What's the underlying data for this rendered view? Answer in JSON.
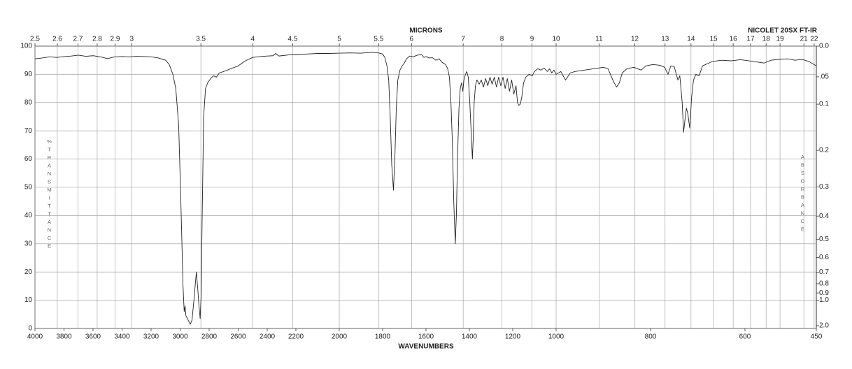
{
  "chart_data": {
    "type": "line",
    "title": "NICOLET 20SX FT-IR",
    "x2label": "MICRONS",
    "xlabel": "WAVENUMBERS",
    "ylabel": "%TRANSMITTANCE",
    "y2label": "ABSORBANCE",
    "color": "#222222",
    "grid": true,
    "xlim": [
      4000,
      450
    ],
    "xticks": [
      4000,
      3800,
      3600,
      3400,
      3200,
      3000,
      2800,
      2600,
      2400,
      2200,
      2000,
      1800,
      1600,
      1400,
      1200,
      1000,
      800,
      600,
      450
    ],
    "x2ticks": [
      2.5,
      2.6,
      2.7,
      2.8,
      2.9,
      3,
      3.5,
      4,
      4.5,
      5,
      5.5,
      6,
      7,
      8,
      9,
      10,
      11,
      12,
      13,
      14,
      15,
      16,
      17,
      18,
      19,
      21,
      22
    ],
    "ylim": [
      0,
      100
    ],
    "yticks": [
      0,
      10,
      20,
      30,
      40,
      50,
      60,
      70,
      80,
      90,
      100
    ],
    "y2lim": [
      0,
      2
    ],
    "y2ticks": [
      {
        "value": 0,
        "label": "0.0"
      },
      {
        "value": 0.05,
        "label": ".05"
      },
      {
        "value": 0.1,
        "label": "0.1"
      },
      {
        "value": 0.2,
        "label": "0.2"
      },
      {
        "value": 0.3,
        "label": "0.3"
      },
      {
        "value": 0.4,
        "label": "0.4"
      },
      {
        "value": 0.5,
        "label": "0.5"
      },
      {
        "value": 0.6,
        "label": "0.6"
      },
      {
        "value": 0.7,
        "label": "0.7"
      },
      {
        "value": 0.8,
        "label": "0.8"
      },
      {
        "value": 0.9,
        "label": "0.9"
      },
      {
        "value": 1,
        "label": "1.0"
      },
      {
        "value": 2,
        "label": "2.0"
      }
    ],
    "x": [
      4000,
      3950,
      3900,
      3850,
      3800,
      3750,
      3700,
      3650,
      3600,
      3550,
      3500,
      3450,
      3400,
      3350,
      3300,
      3250,
      3200,
      3150,
      3100,
      3075,
      3050,
      3030,
      3010,
      2995,
      2980,
      2972,
      2966,
      2960,
      2945,
      2930,
      2918,
      2905,
      2895,
      2888,
      2880,
      2870,
      2862,
      2855,
      2848,
      2838,
      2825,
      2810,
      2790,
      2770,
      2750,
      2730,
      2700,
      2650,
      2600,
      2550,
      2500,
      2450,
      2400,
      2360,
      2340,
      2320,
      2300,
      2250,
      2200,
      2150,
      2100,
      2050,
      2000,
      1950,
      1900,
      1850,
      1820,
      1800,
      1790,
      1780,
      1772,
      1765,
      1758,
      1750,
      1743,
      1737,
      1730,
      1720,
      1710,
      1700,
      1690,
      1675,
      1660,
      1640,
      1620,
      1610,
      1600,
      1585,
      1570,
      1555,
      1540,
      1525,
      1510,
      1500,
      1492,
      1485,
      1478,
      1472,
      1465,
      1460,
      1454,
      1448,
      1442,
      1436,
      1430,
      1425,
      1418,
      1412,
      1405,
      1398,
      1392,
      1386,
      1382,
      1378,
      1372,
      1365,
      1355,
      1345,
      1335,
      1325,
      1315,
      1305,
      1295,
      1285,
      1275,
      1265,
      1255,
      1245,
      1235,
      1225,
      1215,
      1205,
      1195,
      1185,
      1178,
      1172,
      1165,
      1158,
      1150,
      1140,
      1125,
      1110,
      1100,
      1085,
      1070,
      1055,
      1040,
      1030,
      1020,
      1010,
      1000,
      990,
      980,
      970,
      960,
      940,
      920,
      900,
      890,
      880,
      872,
      866,
      860,
      850,
      835,
      820,
      810,
      795,
      780,
      770,
      763,
      757,
      750,
      742,
      738,
      733,
      730,
      727,
      724,
      721,
      717,
      713,
      709,
      704,
      697,
      690,
      670,
      650,
      630,
      610,
      600,
      580,
      560,
      545,
      530,
      510,
      495,
      480,
      465,
      450
    ],
    "values": [
      95.5,
      95.8,
      96.2,
      96,
      96.3,
      96.5,
      96.8,
      96.4,
      96.6,
      96.2,
      95.6,
      96.2,
      96.3,
      96.2,
      96.4,
      96.3,
      96.2,
      95.8,
      95,
      93.5,
      90,
      85,
      72,
      45,
      15,
      6,
      8,
      4.5,
      3,
      1.5,
      3,
      10,
      16,
      20,
      15,
      8,
      3.5,
      12,
      40,
      75,
      85,
      87,
      88.5,
      89.5,
      89,
      90.5,
      91,
      92,
      93,
      94.8,
      96,
      96.3,
      96.5,
      96.6,
      97.4,
      96.5,
      96.6,
      96.9,
      97,
      97.2,
      97.4,
      97.4,
      97.5,
      97.6,
      97.5,
      97.8,
      97.6,
      97.2,
      96,
      93,
      88,
      75,
      58,
      49,
      62,
      78,
      88,
      91.5,
      93,
      94,
      95.5,
      96.5,
      96.2,
      96.8,
      97,
      96,
      96.3,
      95.8,
      95.9,
      95,
      95.5,
      94.2,
      93.5,
      92,
      89,
      80,
      65,
      45,
      30,
      40,
      62,
      78,
      85,
      87,
      84,
      88,
      90,
      91,
      89,
      80,
      70,
      60,
      68,
      80,
      86,
      88,
      86.5,
      88,
      85.5,
      88.5,
      86,
      89,
      86.5,
      89,
      85.5,
      89,
      86,
      89,
      85,
      88.5,
      84,
      88,
      83,
      86,
      80,
      79,
      79.5,
      82,
      87,
      89,
      90,
      89.5,
      91,
      92,
      91.5,
      92.2,
      91,
      92,
      90.5,
      91.5,
      90,
      91,
      88,
      90.5,
      91,
      91.5,
      92,
      92.5,
      92,
      88,
      85.5,
      87,
      90.5,
      92,
      92.5,
      91.5,
      93,
      93.5,
      93.2,
      92.5,
      90,
      93,
      92.8,
      88,
      89.5,
      80,
      69.5,
      74,
      78,
      76,
      71,
      82,
      88,
      90,
      89.5,
      93,
      94.5,
      95,
      94.8,
      95.2,
      95,
      94.5,
      94,
      95,
      95.3,
      95.5,
      95,
      95.3,
      94.5,
      93
    ]
  }
}
